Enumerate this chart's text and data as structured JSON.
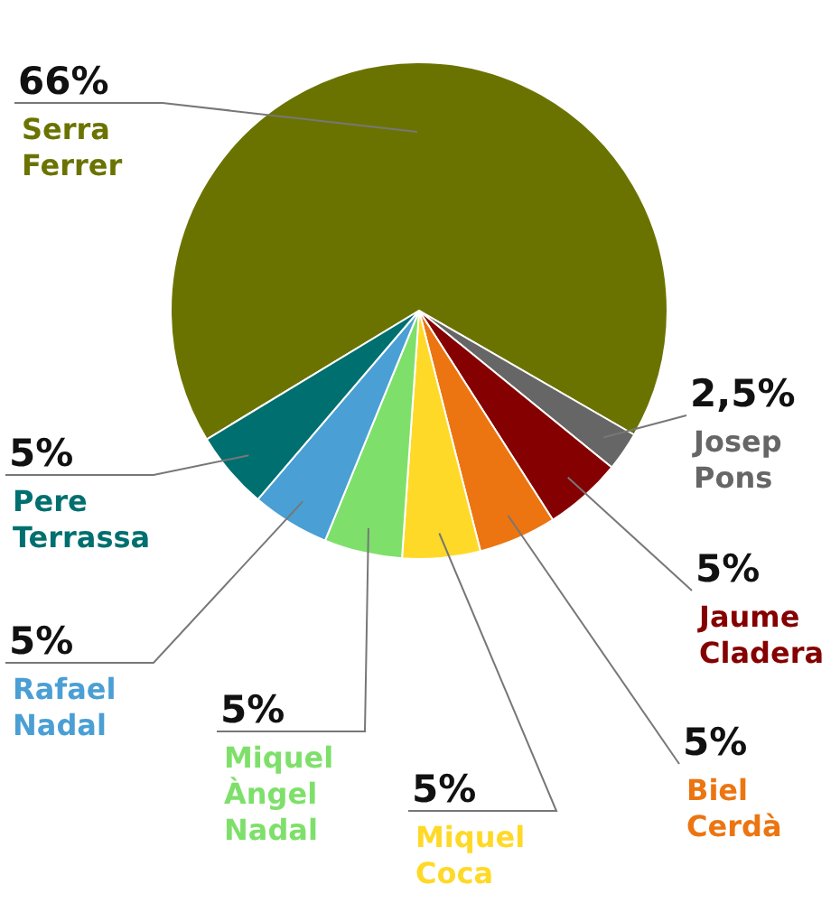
{
  "chart_data": {
    "type": "pie",
    "categories": [
      "Serra Ferrer",
      "Josep Pons",
      "Jaume Cladera",
      "Biel Cerdà",
      "Miquel Coca",
      "Miquel Àngel Nadal",
      "Rafael Nadal",
      "Pere Terrassa"
    ],
    "values": [
      66,
      2.5,
      5,
      5,
      5,
      5,
      5,
      5
    ],
    "value_labels": [
      "66%",
      "2,5%",
      "5%",
      "5%",
      "5%",
      "5%",
      "5%",
      "5%"
    ],
    "colors": [
      "#6b7300",
      "#666666",
      "#850000",
      "#ec7511",
      "#ffd927",
      "#7ee06a",
      "#4a9fd4",
      "#006f6f"
    ]
  }
}
